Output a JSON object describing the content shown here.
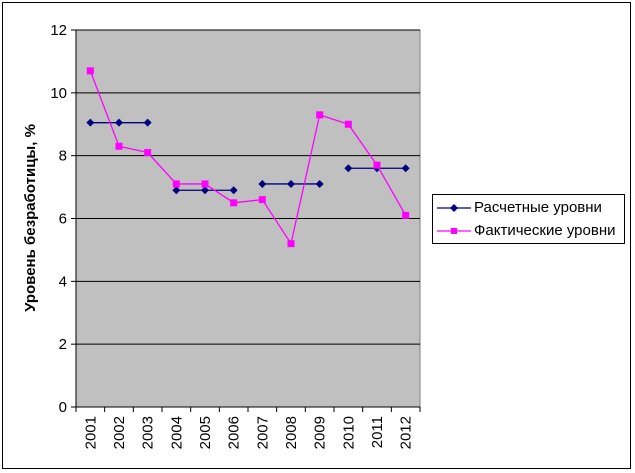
{
  "chart_data": {
    "type": "line",
    "title": "",
    "xlabel": "",
    "ylabel": "Уровень безработицы, %",
    "categories": [
      "2001",
      "2002",
      "2003",
      "2004",
      "2005",
      "2006",
      "2007",
      "2008",
      "2009",
      "2010",
      "2011",
      "2012"
    ],
    "ylim": [
      0,
      12
    ],
    "yticks": [
      0,
      2,
      4,
      6,
      8,
      10,
      12
    ],
    "grid": true,
    "legend_position": "right",
    "plot_background": "#c0c0c0",
    "series": [
      {
        "name": "Расчетные уровни",
        "color": "#000080",
        "marker": "diamond",
        "values": [
          9.05,
          9.05,
          9.05,
          6.9,
          6.9,
          6.9,
          7.1,
          7.1,
          7.1,
          7.6,
          7.6,
          7.6
        ],
        "segments": [
          [
            0,
            2
          ],
          [
            3,
            5
          ],
          [
            6,
            8
          ],
          [
            9,
            11
          ]
        ]
      },
      {
        "name": "Фактические уровни",
        "color": "#ff00ff",
        "marker": "square",
        "values": [
          10.7,
          8.3,
          8.1,
          7.1,
          7.1,
          6.5,
          6.6,
          5.2,
          9.3,
          9.0,
          7.7,
          6.1
        ],
        "segments": [
          [
            0,
            11
          ]
        ]
      }
    ]
  }
}
